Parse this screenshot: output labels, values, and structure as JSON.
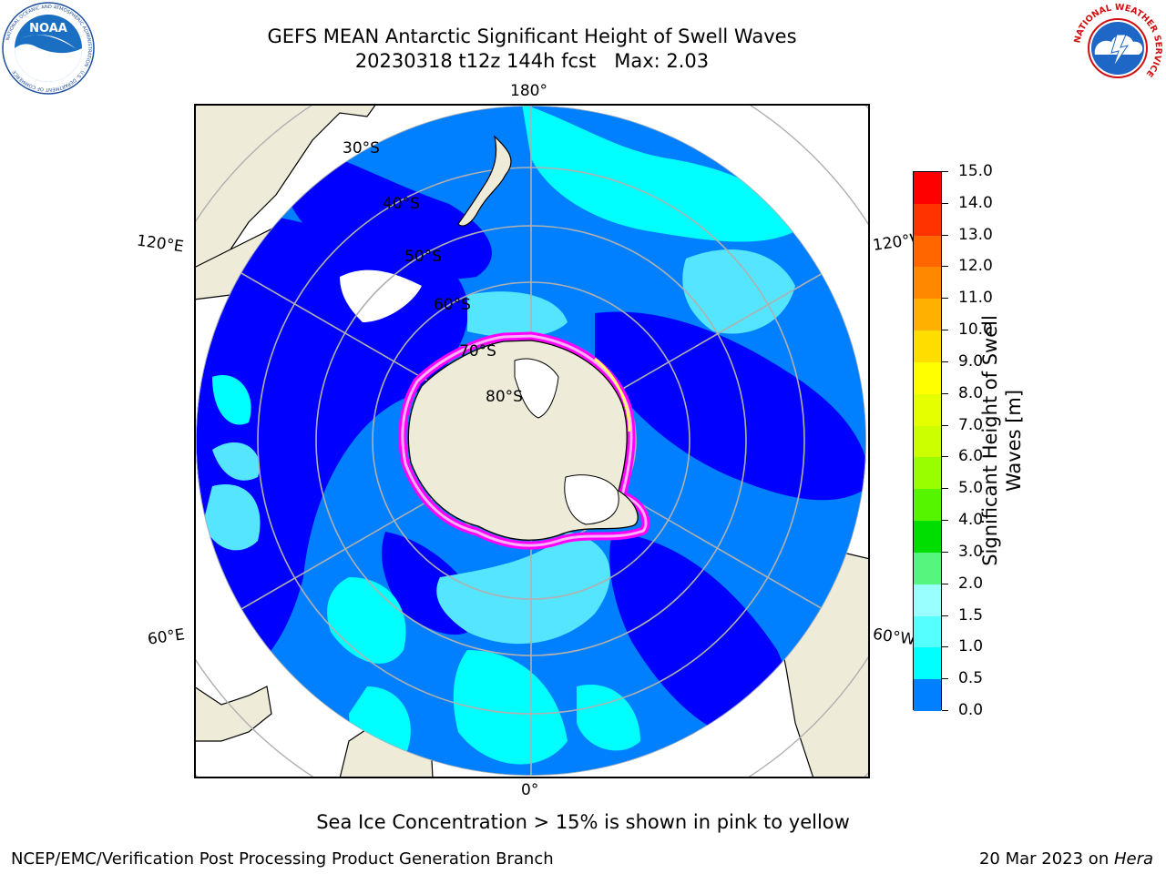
{
  "title": {
    "line1": "GEFS MEAN Antarctic Significant Height of Swell Waves",
    "line2": "20230318 t12z 144h fcst   Max: 2.03"
  },
  "logos": {
    "left": {
      "text": "NOAA",
      "icon": "noaa-logo-icon",
      "ring_text": "NATIONAL OCEANIC AND ATMOSPHERIC ADMINISTRATION · U.S. DEPARTMENT OF COMMERCE"
    },
    "right": {
      "icon": "nws-logo-icon",
      "ring_text": "NATIONAL WEATHER SERVICE"
    }
  },
  "map": {
    "projection": "south-polar-stereographic",
    "longitude_labels": {
      "top": "180°",
      "upper_left": "120°E",
      "upper_right": "120°W",
      "lower_left": "60°E",
      "lower_right": "60°W",
      "bottom": "0°"
    },
    "latitude_labels": [
      "30°S",
      "40°S",
      "50°S",
      "60°S",
      "70°S",
      "80°S"
    ],
    "ocean_colors": {
      "dark": "#0000ff",
      "mid": "#0080ff",
      "light": "#00ffff",
      "pale": "#55e5ff"
    },
    "land_color": "#eeecd9",
    "sea_ice_colors": [
      "#ff55ff",
      "#ff00ff",
      "#ffb0ff",
      "#ffff66"
    ]
  },
  "colorbar": {
    "label_line1": "Significant Height of Swell",
    "label_line2": "Waves [m]",
    "ticks": [
      "15.0",
      "14.0",
      "13.0",
      "12.0",
      "11.0",
      "10.0",
      "9.0",
      "8.0",
      "7.0",
      "6.0",
      "5.0",
      "4.0",
      "3.0",
      "2.0",
      "1.5",
      "1.0",
      "0.5",
      "0.0"
    ],
    "colors": [
      "#ff0000",
      "#ff3300",
      "#ff6600",
      "#ff8800",
      "#ffb000",
      "#ffdd00",
      "#ffff00",
      "#e6ff00",
      "#ccff00",
      "#99ff00",
      "#55f500",
      "#00dd00",
      "#55f57e",
      "#99ffff",
      "#55ffff",
      "#00ffff",
      "#0080ff",
      "#0000ff"
    ]
  },
  "note": "Sea Ice Concentration > 15% is shown in pink to yellow",
  "footer": {
    "left": "NCEP/EMC/Verification Post Processing Product Generation Branch",
    "right_date": "20 Mar 2023 on ",
    "right_host": "Hera"
  }
}
